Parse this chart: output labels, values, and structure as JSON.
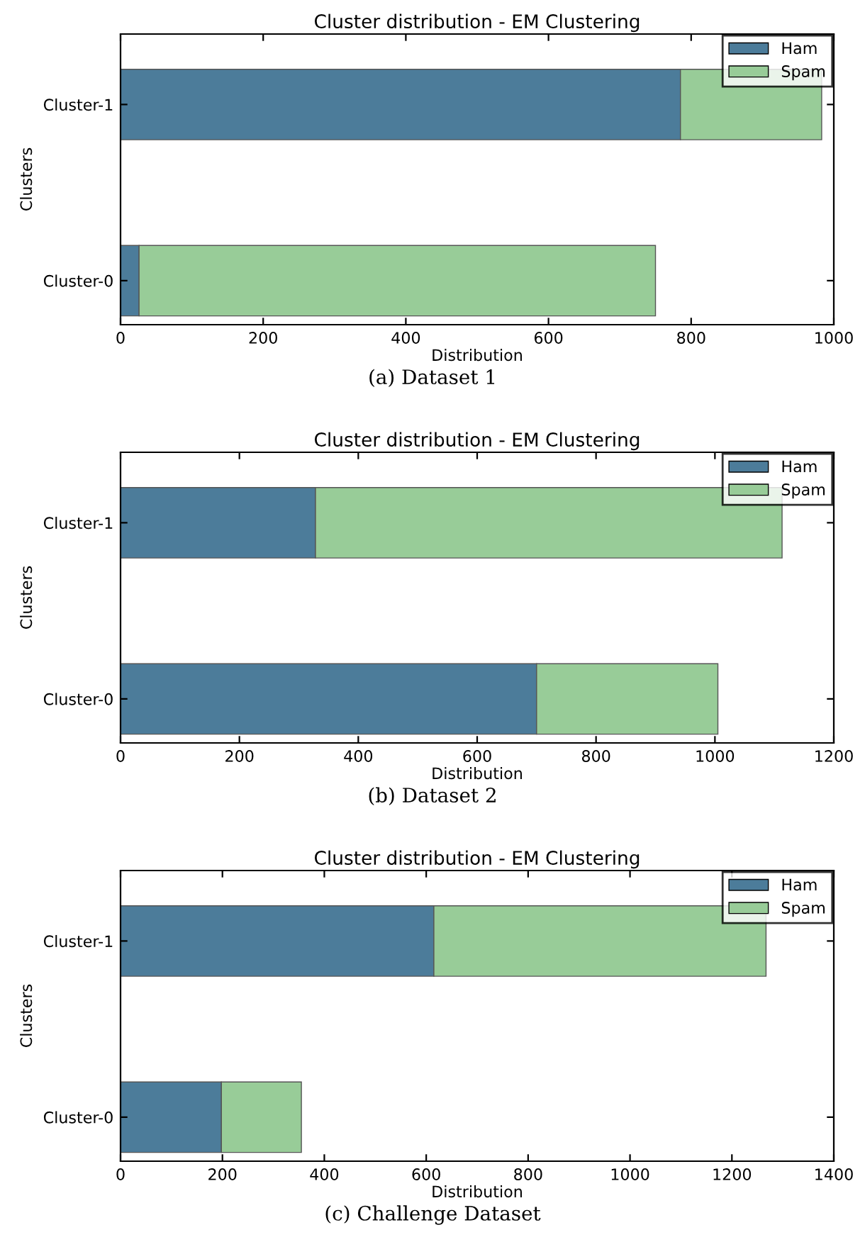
{
  "chart_data": [
    {
      "type": "bar",
      "orientation": "horizontal",
      "stacked": true,
      "title": "Cluster distribution - EM Clustering",
      "xlabel": "Distribution",
      "ylabel": "Clusters",
      "categories": [
        "Cluster-1",
        "Cluster-0"
      ],
      "series": [
        {
          "name": "Ham",
          "color": "#4c7c9a",
          "values": [
            785,
            26
          ]
        },
        {
          "name": "Spam",
          "color": "#98cc98",
          "values": [
            198,
            724
          ]
        }
      ],
      "xlim": [
        0,
        1000
      ],
      "xticks": [
        0,
        200,
        400,
        600,
        800,
        1000
      ],
      "legend": "top right",
      "annotations": [
        "(a) Dataset 1"
      ]
    },
    {
      "type": "bar",
      "orientation": "horizontal",
      "stacked": true,
      "title": "Cluster distribution - EM Clustering",
      "xlabel": "Distribution",
      "ylabel": "Clusters",
      "categories": [
        "Cluster-1",
        "Cluster-0"
      ],
      "series": [
        {
          "name": "Ham",
          "color": "#4c7c9a",
          "values": [
            328,
            700
          ]
        },
        {
          "name": "Spam",
          "color": "#98cc98",
          "values": [
            785,
            305
          ]
        }
      ],
      "xlim": [
        0,
        1200
      ],
      "xticks": [
        0,
        200,
        400,
        600,
        800,
        1000,
        1200
      ],
      "legend": "top right",
      "annotations": [
        "(b) Dataset 2"
      ]
    },
    {
      "type": "bar",
      "orientation": "horizontal",
      "stacked": true,
      "title": "Cluster distribution - EM Clustering",
      "xlabel": "Distribution",
      "ylabel": "Clusters",
      "categories": [
        "Cluster-1",
        "Cluster-0"
      ],
      "series": [
        {
          "name": "Ham",
          "color": "#4c7c9a",
          "values": [
            615,
            198
          ]
        },
        {
          "name": "Spam",
          "color": "#98cc98",
          "values": [
            652,
            157
          ]
        }
      ],
      "xlim": [
        0,
        1400
      ],
      "xticks": [
        0,
        200,
        400,
        600,
        800,
        1000,
        1200,
        1400
      ],
      "legend": "top right",
      "annotations": [
        "(c) Challenge Dataset"
      ]
    }
  ]
}
